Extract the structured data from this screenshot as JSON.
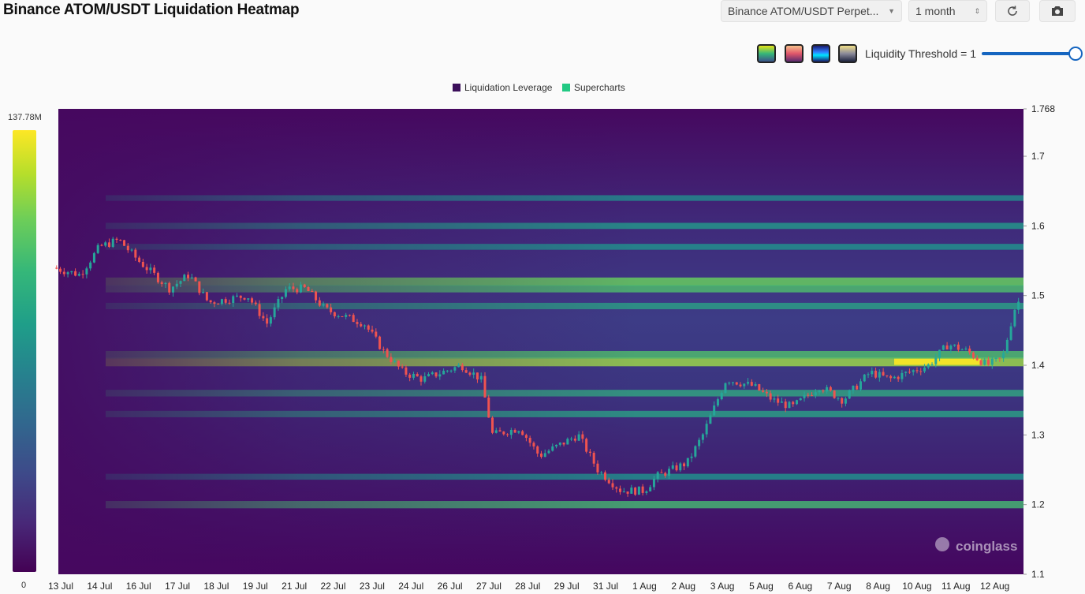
{
  "header": {
    "title": "Binance ATOM/USDT Liquidation Heatmap",
    "symbol_value": "Binance ATOM/USDT Perpet...",
    "range_value": "1 month",
    "refresh_icon": "refresh-icon",
    "camera_icon": "camera-icon"
  },
  "controls": {
    "palettes": [
      "viridis",
      "warm",
      "blue",
      "gold"
    ],
    "threshold_label": "Liquidity Threshold = 1",
    "threshold_value": 1
  },
  "colors": {
    "liq_leverage": "#3b0f5a",
    "supercharts": "#22c983",
    "candle_up": "#26a69a",
    "candle_down": "#ef5350",
    "accent": "#1565c0"
  },
  "chart_data": {
    "type": "heatmap",
    "title": "Binance ATOM/USDT Liquidation Heatmap",
    "legend": [
      "Liquidation Leverage",
      "Supercharts"
    ],
    "color_scale": {
      "min_label": "0",
      "max_label": "137.78M"
    },
    "x_ticks": [
      "13 Jul",
      "14 Jul",
      "16 Jul",
      "17 Jul",
      "18 Jul",
      "19 Jul",
      "21 Jul",
      "22 Jul",
      "23 Jul",
      "24 Jul",
      "26 Jul",
      "27 Jul",
      "28 Jul",
      "29 Jul",
      "31 Jul",
      "1 Aug",
      "2 Aug",
      "3 Aug",
      "5 Aug",
      "6 Aug",
      "7 Aug",
      "8 Aug",
      "10 Aug",
      "11 Aug",
      "12 Aug"
    ],
    "y_ticks": [
      "1.768",
      "1.7",
      "1.6",
      "1.5",
      "1.4",
      "1.3",
      "1.2",
      "1.1"
    ],
    "ylim": [
      1.1,
      1.768
    ],
    "price_path": [
      [
        0,
        1.54
      ],
      [
        0.7,
        1.53
      ],
      [
        1.2,
        1.57
      ],
      [
        1.7,
        1.58
      ],
      [
        2.2,
        1.55
      ],
      [
        3,
        1.51
      ],
      [
        3.5,
        1.53
      ],
      [
        4,
        1.49
      ],
      [
        5,
        1.5
      ],
      [
        5.5,
        1.46
      ],
      [
        6,
        1.51
      ],
      [
        6.5,
        1.51
      ],
      [
        7,
        1.48
      ],
      [
        8,
        1.46
      ],
      [
        8.5,
        1.42
      ],
      [
        9,
        1.39
      ],
      [
        9.5,
        1.38
      ],
      [
        10.5,
        1.4
      ],
      [
        11,
        1.38
      ],
      [
        11.3,
        1.3
      ],
      [
        12,
        1.31
      ],
      [
        12.5,
        1.27
      ],
      [
        13.5,
        1.3
      ],
      [
        14,
        1.25
      ],
      [
        14.6,
        1.22
      ],
      [
        15.2,
        1.22
      ],
      [
        15.5,
        1.24
      ],
      [
        16.3,
        1.26
      ],
      [
        16.7,
        1.3
      ],
      [
        17.3,
        1.38
      ],
      [
        18,
        1.37
      ],
      [
        18.5,
        1.35
      ],
      [
        19,
        1.34
      ],
      [
        19.7,
        1.37
      ],
      [
        20.3,
        1.35
      ],
      [
        21,
        1.39
      ],
      [
        21.5,
        1.38
      ],
      [
        22.5,
        1.4
      ],
      [
        23,
        1.43
      ],
      [
        23.5,
        1.42
      ],
      [
        24,
        1.4
      ],
      [
        24.4,
        1.41
      ],
      [
        24.7,
        1.48
      ],
      [
        25,
        1.51
      ],
      [
        25.1,
        1.53
      ]
    ],
    "liquidity_bands": [
      {
        "y": 1.52,
        "intensity": 0.75
      },
      {
        "y": 1.51,
        "intensity": 0.6
      },
      {
        "y": 1.485,
        "intensity": 0.35
      },
      {
        "y": 1.6,
        "intensity": 0.3
      },
      {
        "y": 1.57,
        "intensity": 0.25
      },
      {
        "y": 1.64,
        "intensity": 0.2
      },
      {
        "y": 1.405,
        "intensity": 0.9
      },
      {
        "y": 1.415,
        "intensity": 0.6
      },
      {
        "y": 1.36,
        "intensity": 0.4
      },
      {
        "y": 1.33,
        "intensity": 0.35
      },
      {
        "y": 1.2,
        "intensity": 0.55
      },
      {
        "y": 1.24,
        "intensity": 0.25
      }
    ],
    "watermark": "coinglass"
  }
}
